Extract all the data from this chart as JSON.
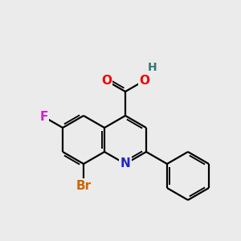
{
  "bg_color": "#ebebeb",
  "bond_color": "#000000",
  "bond_width": 1.6,
  "figsize": [
    3.0,
    3.0
  ],
  "dpi": 100,
  "xlim": [
    0,
    10
  ],
  "ylim": [
    0,
    10
  ],
  "colors": {
    "N": "#2222cc",
    "O": "#ee0000",
    "H": "#337777",
    "F": "#cc22cc",
    "Br": "#cc6600",
    "C": "#000000"
  }
}
